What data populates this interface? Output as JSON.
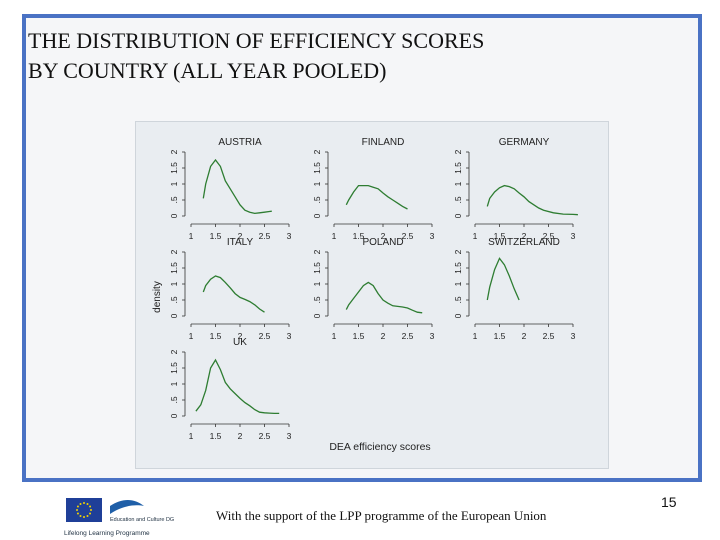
{
  "slide": {
    "title_line1": "THE DISTRIBUTION OF EFFICIENCY SCORES",
    "title_line2": "BY COUNTRY (ALL YEAR POOLED)",
    "footer_text": "With the support of the LPP programme of the European Union",
    "page_number": "15",
    "logo": {
      "icon": "eu-flag-logo",
      "caption1": "Education and Culture DG",
      "caption2": "Lifelong Learning Programme"
    }
  },
  "colors": {
    "frame": "#4a72c4",
    "plot_bg": "#e9edf1",
    "line": "#2e7d32",
    "axis": "#333333"
  },
  "chart_data": {
    "type": "line",
    "xlabel": "DEA efficiency scores",
    "ylabel": "density",
    "xlim": [
      1,
      3
    ],
    "ylim": [
      0,
      2
    ],
    "xticks": [
      "1",
      "1.5",
      "2",
      "2.5",
      "3"
    ],
    "yticks": [
      "0",
      ".5",
      "1",
      "1.5",
      "2"
    ],
    "panels": [
      {
        "name": "AUSTRIA",
        "x": [
          1.25,
          1.3,
          1.4,
          1.5,
          1.6,
          1.7,
          1.8,
          1.9,
          2.0,
          2.1,
          2.2,
          2.3,
          2.4,
          2.5,
          2.6,
          2.65
        ],
        "y": [
          0.55,
          1.0,
          1.55,
          1.75,
          1.55,
          1.1,
          0.85,
          0.6,
          0.35,
          0.18,
          0.12,
          0.08,
          0.1,
          0.12,
          0.14,
          0.15
        ]
      },
      {
        "name": "FINLAND",
        "x": [
          1.25,
          1.3,
          1.4,
          1.5,
          1.6,
          1.7,
          1.8,
          1.9,
          2.0,
          2.1,
          2.2,
          2.3,
          2.4,
          2.5
        ],
        "y": [
          0.35,
          0.5,
          0.75,
          0.95,
          0.95,
          0.95,
          0.9,
          0.85,
          0.72,
          0.6,
          0.5,
          0.4,
          0.3,
          0.22
        ]
      },
      {
        "name": "GERMANY",
        "x": [
          1.25,
          1.3,
          1.4,
          1.5,
          1.6,
          1.7,
          1.8,
          1.9,
          2.0,
          2.1,
          2.2,
          2.3,
          2.4,
          2.6,
          2.8,
          3.0,
          3.1
        ],
        "y": [
          0.3,
          0.55,
          0.75,
          0.88,
          0.95,
          0.92,
          0.85,
          0.72,
          0.6,
          0.45,
          0.35,
          0.25,
          0.18,
          0.1,
          0.06,
          0.05,
          0.04
        ]
      },
      {
        "name": "ITALY",
        "x": [
          1.25,
          1.3,
          1.4,
          1.5,
          1.6,
          1.7,
          1.8,
          1.9,
          2.0,
          2.1,
          2.2,
          2.3,
          2.4,
          2.5
        ],
        "y": [
          0.75,
          0.95,
          1.15,
          1.25,
          1.2,
          1.05,
          0.88,
          0.7,
          0.58,
          0.52,
          0.45,
          0.35,
          0.22,
          0.12
        ]
      },
      {
        "name": "POLAND",
        "x": [
          1.25,
          1.3,
          1.4,
          1.5,
          1.6,
          1.7,
          1.8,
          1.9,
          2.0,
          2.1,
          2.2,
          2.3,
          2.4,
          2.5,
          2.6,
          2.7,
          2.8
        ],
        "y": [
          0.2,
          0.35,
          0.55,
          0.75,
          0.95,
          1.05,
          0.95,
          0.7,
          0.5,
          0.4,
          0.32,
          0.3,
          0.28,
          0.25,
          0.18,
          0.12,
          0.1
        ]
      },
      {
        "name": "SWITZERLAND",
        "x": [
          1.25,
          1.3,
          1.4,
          1.5,
          1.6,
          1.7,
          1.8,
          1.9
        ],
        "y": [
          0.5,
          0.9,
          1.45,
          1.8,
          1.6,
          1.25,
          0.85,
          0.5
        ]
      },
      {
        "name": "UK",
        "x": [
          1.1,
          1.2,
          1.3,
          1.4,
          1.5,
          1.6,
          1.7,
          1.8,
          1.9,
          2.0,
          2.1,
          2.2,
          2.3,
          2.4,
          2.5,
          2.6,
          2.7,
          2.8
        ],
        "y": [
          0.15,
          0.35,
          0.8,
          1.5,
          1.75,
          1.45,
          1.05,
          0.85,
          0.7,
          0.55,
          0.42,
          0.32,
          0.2,
          0.12,
          0.1,
          0.09,
          0.08,
          0.08
        ]
      }
    ]
  }
}
